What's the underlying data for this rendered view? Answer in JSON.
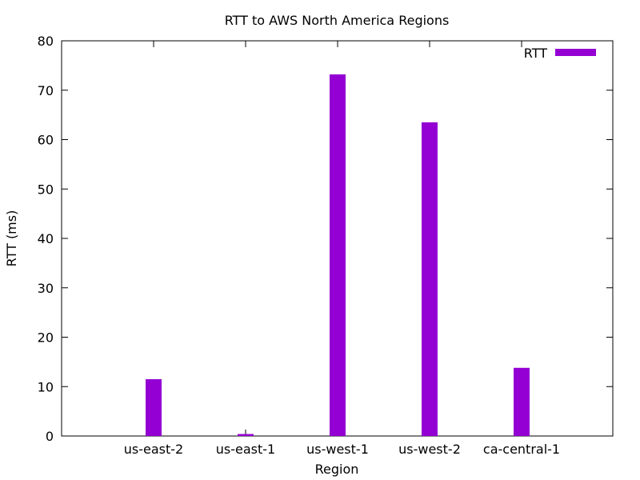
{
  "chart_data": {
    "type": "bar",
    "title": "RTT to AWS North America Regions",
    "xlabel": "Region",
    "ylabel": "RTT (ms)",
    "categories": [
      "us-east-2",
      "us-east-1",
      "us-west-1",
      "us-west-2",
      "ca-central-1"
    ],
    "series": [
      {
        "name": "RTT",
        "values": [
          11.5,
          0.4,
          73.2,
          63.5,
          13.8
        ]
      }
    ],
    "ylim": [
      0,
      80
    ],
    "yticks": [
      0,
      10,
      20,
      30,
      40,
      50,
      60,
      70,
      80
    ],
    "grid": false,
    "legend_position": "top-right",
    "colors": {
      "series": "#9400d3",
      "axis": "#000000",
      "background": "#ffffff"
    }
  }
}
